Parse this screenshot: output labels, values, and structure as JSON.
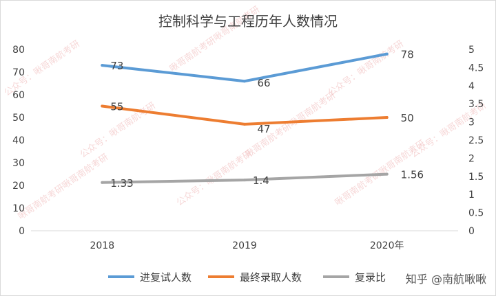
{
  "chart_data": {
    "type": "line",
    "title": "控制科学与工程历年人数情况",
    "categories": [
      "2018",
      "2019",
      "2020年"
    ],
    "y_left": {
      "ticks": [
        0,
        10,
        20,
        30,
        40,
        50,
        60,
        70,
        80
      ],
      "range": [
        0,
        80
      ]
    },
    "y_right": {
      "ticks": [
        "0",
        "0.5",
        "1",
        "1.5",
        "2",
        "2.5",
        "3",
        "3.5",
        "4",
        "4.5",
        "5"
      ],
      "range": [
        0,
        5
      ]
    },
    "series": [
      {
        "name": "进复试人数",
        "axis": "left",
        "color": "#5b9bd5",
        "values": [
          73,
          66,
          78
        ],
        "labels": [
          "73",
          "66",
          "78"
        ]
      },
      {
        "name": "最终录取人数",
        "axis": "left",
        "color": "#ed7d31",
        "values": [
          55,
          47,
          50
        ],
        "labels": [
          "55",
          "47",
          "50"
        ]
      },
      {
        "name": "复录比",
        "axis": "right",
        "color": "#a5a5a5",
        "values": [
          1.33,
          1.4,
          1.56
        ],
        "labels": [
          "1.33",
          "1.4",
          "1.56"
        ]
      }
    ],
    "legend_position": "bottom",
    "gridlines": false
  },
  "watermarks": [
    "公众号：",
    "啾哥南航考研"
  ],
  "source_tag": "知乎 @南航啾啾"
}
